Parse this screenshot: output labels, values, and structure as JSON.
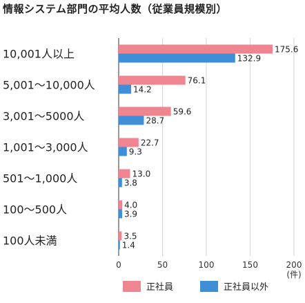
{
  "chart_data": {
    "type": "bar",
    "orientation": "horizontal",
    "title": "情報システム部門の平均人数（従業員規模別）",
    "categories": [
      "10,001人以上",
      "5,001～10,000人",
      "3,001～5000人",
      "1,001～3,000人",
      "501～1,000人",
      "100～500人",
      "100人未満"
    ],
    "series": [
      {
        "name": "正社員",
        "color": "#ee8591",
        "values": [
          175.6,
          76.1,
          59.6,
          22.7,
          13.0,
          4.0,
          3.5
        ],
        "labels": [
          "175.6",
          "76.1",
          "59.6",
          "22.7",
          "13.0",
          "4.0",
          "3.5"
        ]
      },
      {
        "name": "正社員以外",
        "color": "#3f8fd8",
        "values": [
          132.9,
          14.2,
          28.7,
          9.3,
          3.8,
          3.9,
          1.4
        ],
        "labels": [
          "132.9",
          "14.2",
          "28.7",
          "9.3",
          "3.8",
          "3.9",
          "1.4"
        ]
      }
    ],
    "xlim": [
      0,
      200
    ],
    "xticks": [
      "0",
      "50",
      "100",
      "150",
      "200"
    ],
    "x_unit": "(件)",
    "xlabel": "",
    "ylabel": "",
    "grid": true,
    "legend_position": "bottom"
  }
}
